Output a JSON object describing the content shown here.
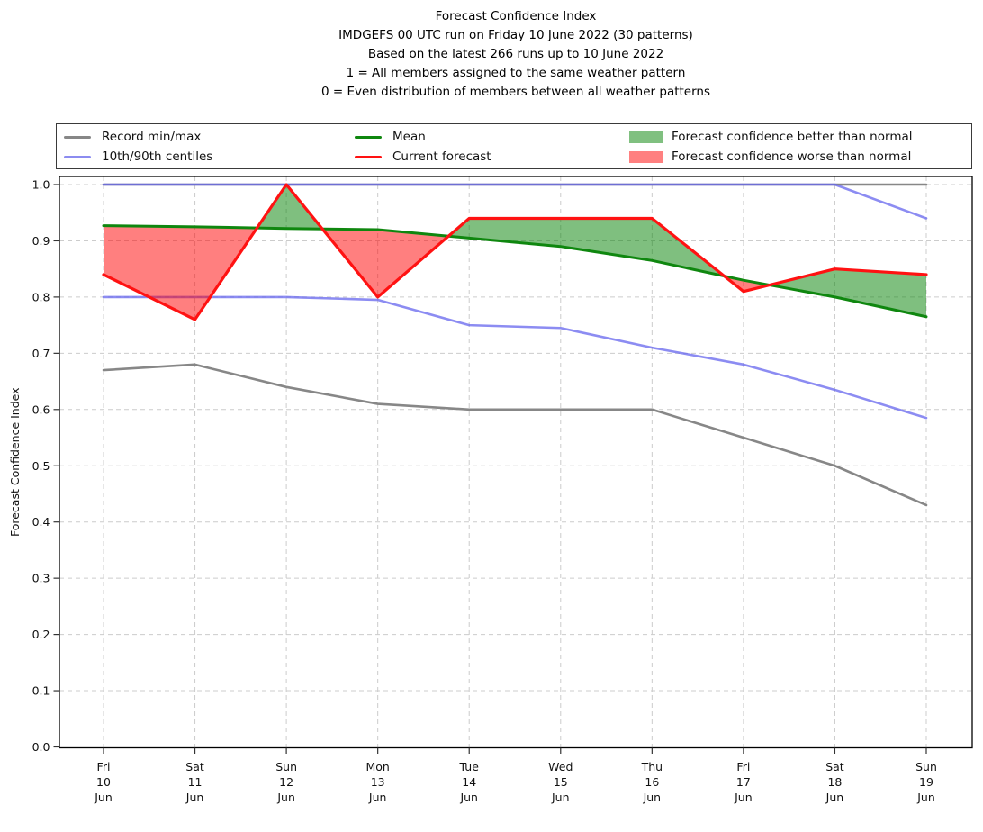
{
  "title": {
    "line1": "Forecast Confidence Index",
    "line2": "IMDGEFS 00 UTC run on Friday 10 June 2022 (30 patterns)",
    "line3": "Based on the latest 266 runs up to 10 June 2022",
    "line4": "1 = All members assigned to the same weather pattern",
    "line5": "0 = Even distribution of members between all weather patterns"
  },
  "legend": {
    "items": [
      {
        "label": "Record min/max",
        "swatch": "line",
        "color": "#878787"
      },
      {
        "label": "10th/90th centiles",
        "swatch": "line",
        "color": "#8c8cf0"
      },
      {
        "label": "Mean",
        "swatch": "line",
        "color": "#0f870f"
      },
      {
        "label": "Current forecast",
        "swatch": "line",
        "color": "#ff1212"
      },
      {
        "label": "Forecast confidence better than normal",
        "swatch": "patch",
        "color": "#80c080"
      },
      {
        "label": "Forecast confidence worse than normal",
        "swatch": "patch",
        "color": "#ff8080"
      }
    ]
  },
  "chart_data": {
    "type": "line",
    "title": "Forecast Confidence Index",
    "ylabel": "Forecast Confidence Index",
    "ylim": [
      0.0,
      1.0
    ],
    "yticks": [
      0.0,
      0.1,
      0.2,
      0.3,
      0.4,
      0.5,
      0.6,
      0.7,
      0.8,
      0.9,
      1.0
    ],
    "x_labels": [
      [
        "Fri",
        "10",
        "Jun"
      ],
      [
        "Sat",
        "11",
        "Jun"
      ],
      [
        "Sun",
        "12",
        "Jun"
      ],
      [
        "Mon",
        "13",
        "Jun"
      ],
      [
        "Tue",
        "14",
        "Jun"
      ],
      [
        "Wed",
        "15",
        "Jun"
      ],
      [
        "Thu",
        "16",
        "Jun"
      ],
      [
        "Fri",
        "17",
        "Jun"
      ],
      [
        "Sat",
        "18",
        "Jun"
      ],
      [
        "Sun",
        "19",
        "Jun"
      ]
    ],
    "grid": true,
    "legend_position": "top",
    "series": [
      {
        "name": "Record max",
        "color": "#878787",
        "opacity": 1,
        "width": 2.6,
        "values": [
          1.0,
          1.0,
          1.0,
          1.0,
          1.0,
          1.0,
          1.0,
          1.0,
          1.0,
          1.0
        ]
      },
      {
        "name": "Record min",
        "color": "#878787",
        "opacity": 1,
        "width": 2.6,
        "values": [
          0.67,
          0.68,
          0.64,
          0.61,
          0.6,
          0.6,
          0.6,
          0.55,
          0.5,
          0.43
        ]
      },
      {
        "name": "90th centile",
        "color": "#6666ee",
        "opacity": 0.75,
        "width": 2.6,
        "values": [
          1.0,
          1.0,
          1.0,
          1.0,
          1.0,
          1.0,
          1.0,
          1.0,
          1.0,
          0.94
        ]
      },
      {
        "name": "10th centile",
        "color": "#6666ee",
        "opacity": 0.75,
        "width": 2.6,
        "values": [
          0.8,
          0.8,
          0.8,
          0.795,
          0.75,
          0.745,
          0.71,
          0.68,
          0.635,
          0.585
        ]
      },
      {
        "name": "Mean",
        "color": "#0f870f",
        "opacity": 1,
        "width": 3.0,
        "values": [
          0.927,
          0.925,
          0.922,
          0.92,
          0.905,
          0.89,
          0.865,
          0.83,
          0.8,
          0.765
        ]
      },
      {
        "name": "Current forecast",
        "color": "#ff1212",
        "opacity": 1,
        "width": 3.2,
        "values": [
          0.84,
          0.76,
          1.0,
          0.8,
          0.94,
          0.94,
          0.94,
          0.81,
          0.85,
          0.84
        ]
      }
    ],
    "fills": {
      "between": [
        "Current forecast",
        "Mean"
      ],
      "better_color": "rgba(0,128,0,0.5)",
      "worse_color": "rgba(255,0,0,0.5)"
    }
  }
}
